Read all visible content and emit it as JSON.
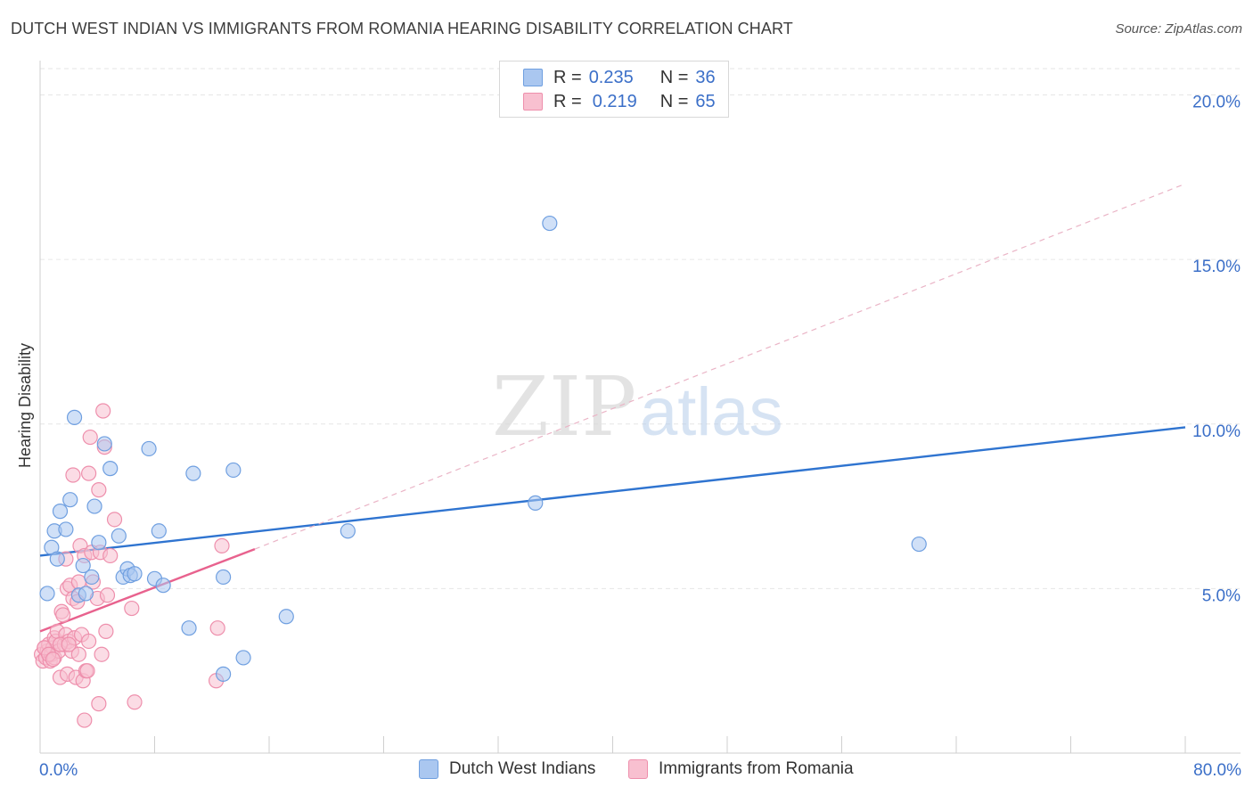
{
  "title": "DUTCH WEST INDIAN VS IMMIGRANTS FROM ROMANIA HEARING DISABILITY CORRELATION CHART",
  "source": "Source: ZipAtlas.com",
  "legend": {
    "r_label": "R =",
    "n_label": "N =",
    "rows": [
      {
        "name": "Dutch West Indians",
        "r": "0.235",
        "n": "36"
      },
      {
        "name": "Immigrants from Romania",
        "r": "0.219",
        "n": "65"
      }
    ]
  },
  "watermark": {
    "zip": "ZIP",
    "atlas": "atlas"
  },
  "colors": {
    "blue_fill": "#aac7f0",
    "blue_stroke": "#6f9fe0",
    "blue_line": "#2f74d0",
    "pink_fill": "#f8c0d0",
    "pink_stroke": "#ee8fac",
    "pink_line": "#e8628e",
    "axis_text": "#3b6fc8",
    "grid": "#e6e6e6"
  },
  "chart_data": {
    "type": "scatter",
    "title": "DUTCH WEST INDIAN VS IMMIGRANTS FROM ROMANIA HEARING DISABILITY CORRELATION CHART",
    "xlabel": "",
    "ylabel": "Hearing Disability",
    "xlim": [
      0,
      80
    ],
    "ylim": [
      0,
      20.8
    ],
    "x_tick_labels": [
      "0.0%",
      "80.0%"
    ],
    "y_ticks": [
      5,
      10,
      15,
      20
    ],
    "y_tick_labels": [
      "5.0%",
      "10.0%",
      "15.0%",
      "20.0%"
    ],
    "grid": true,
    "series": [
      {
        "name": "Dutch West Indians",
        "color": "blue",
        "trend": {
          "x0": 0,
          "y0": 6.0,
          "x1": 80,
          "y1": 9.9,
          "dashed_to": null
        },
        "points": [
          [
            0.5,
            4.85
          ],
          [
            0.8,
            6.25
          ],
          [
            1.0,
            6.75
          ],
          [
            1.4,
            7.35
          ],
          [
            1.8,
            6.8
          ],
          [
            2.1,
            7.7
          ],
          [
            2.4,
            10.2
          ],
          [
            2.7,
            4.8
          ],
          [
            3.0,
            5.7
          ],
          [
            3.2,
            4.85
          ],
          [
            3.6,
            5.35
          ],
          [
            3.8,
            7.5
          ],
          [
            4.1,
            6.4
          ],
          [
            4.5,
            9.4
          ],
          [
            4.9,
            8.65
          ],
          [
            5.5,
            6.6
          ],
          [
            5.8,
            5.35
          ],
          [
            6.1,
            5.6
          ],
          [
            6.3,
            5.4
          ],
          [
            6.6,
            5.45
          ],
          [
            7.6,
            9.25
          ],
          [
            8.0,
            5.3
          ],
          [
            8.3,
            6.75
          ],
          [
            8.6,
            5.1
          ],
          [
            10.4,
            3.8
          ],
          [
            10.7,
            8.5
          ],
          [
            12.8,
            5.35
          ],
          [
            12.8,
            2.4
          ],
          [
            13.5,
            8.6
          ],
          [
            14.2,
            2.9
          ],
          [
            17.2,
            4.15
          ],
          [
            21.5,
            6.75
          ],
          [
            34.6,
            7.6
          ],
          [
            35.6,
            16.1
          ],
          [
            61.4,
            6.35
          ],
          [
            1.2,
            5.9
          ]
        ]
      },
      {
        "name": "Immigrants from Romania",
        "color": "pink",
        "trend": {
          "x0": 0,
          "y0": 3.7,
          "x1": 15,
          "y1": 6.2,
          "dashed_to": {
            "x": 80,
            "y": 17.3
          }
        },
        "points": [
          [
            0.1,
            3.0
          ],
          [
            0.2,
            2.8
          ],
          [
            0.3,
            3.2
          ],
          [
            0.4,
            2.9
          ],
          [
            0.5,
            3.1
          ],
          [
            0.6,
            3.3
          ],
          [
            0.7,
            2.8
          ],
          [
            0.8,
            3.0
          ],
          [
            0.9,
            3.2
          ],
          [
            1.0,
            3.5
          ],
          [
            1.0,
            2.9
          ],
          [
            1.1,
            3.4
          ],
          [
            1.2,
            3.7
          ],
          [
            1.3,
            3.1
          ],
          [
            1.4,
            2.3
          ],
          [
            1.5,
            4.3
          ],
          [
            1.6,
            4.2
          ],
          [
            1.7,
            3.3
          ],
          [
            1.8,
            3.6
          ],
          [
            1.9,
            2.4
          ],
          [
            1.8,
            5.9
          ],
          [
            1.9,
            5.0
          ],
          [
            2.0,
            3.4
          ],
          [
            2.1,
            5.1
          ],
          [
            2.2,
            3.1
          ],
          [
            2.3,
            4.7
          ],
          [
            2.3,
            8.45
          ],
          [
            2.4,
            3.5
          ],
          [
            2.5,
            2.3
          ],
          [
            2.6,
            4.6
          ],
          [
            2.7,
            5.2
          ],
          [
            2.7,
            3.0
          ],
          [
            2.8,
            6.3
          ],
          [
            2.9,
            3.6
          ],
          [
            3.0,
            2.2
          ],
          [
            3.1,
            6.0
          ],
          [
            3.1,
            1.0
          ],
          [
            3.2,
            2.5
          ],
          [
            3.3,
            2.5
          ],
          [
            3.4,
            3.4
          ],
          [
            3.4,
            8.5
          ],
          [
            3.5,
            9.6
          ],
          [
            3.6,
            6.1
          ],
          [
            3.7,
            5.2
          ],
          [
            4.0,
            4.7
          ],
          [
            4.1,
            1.5
          ],
          [
            4.1,
            8.0
          ],
          [
            4.2,
            6.1
          ],
          [
            4.4,
            10.4
          ],
          [
            4.5,
            9.3
          ],
          [
            4.6,
            3.7
          ],
          [
            4.7,
            4.8
          ],
          [
            4.9,
            6.0
          ],
          [
            5.2,
            7.1
          ],
          [
            6.4,
            4.4
          ],
          [
            6.6,
            1.55
          ],
          [
            12.3,
            2.2
          ],
          [
            12.4,
            3.8
          ],
          [
            12.7,
            6.3
          ],
          [
            0.3,
            3.2
          ],
          [
            0.6,
            3.0
          ],
          [
            1.4,
            3.3
          ],
          [
            2.0,
            3.3
          ],
          [
            4.3,
            3.0
          ],
          [
            0.9,
            2.85
          ]
        ]
      }
    ]
  }
}
